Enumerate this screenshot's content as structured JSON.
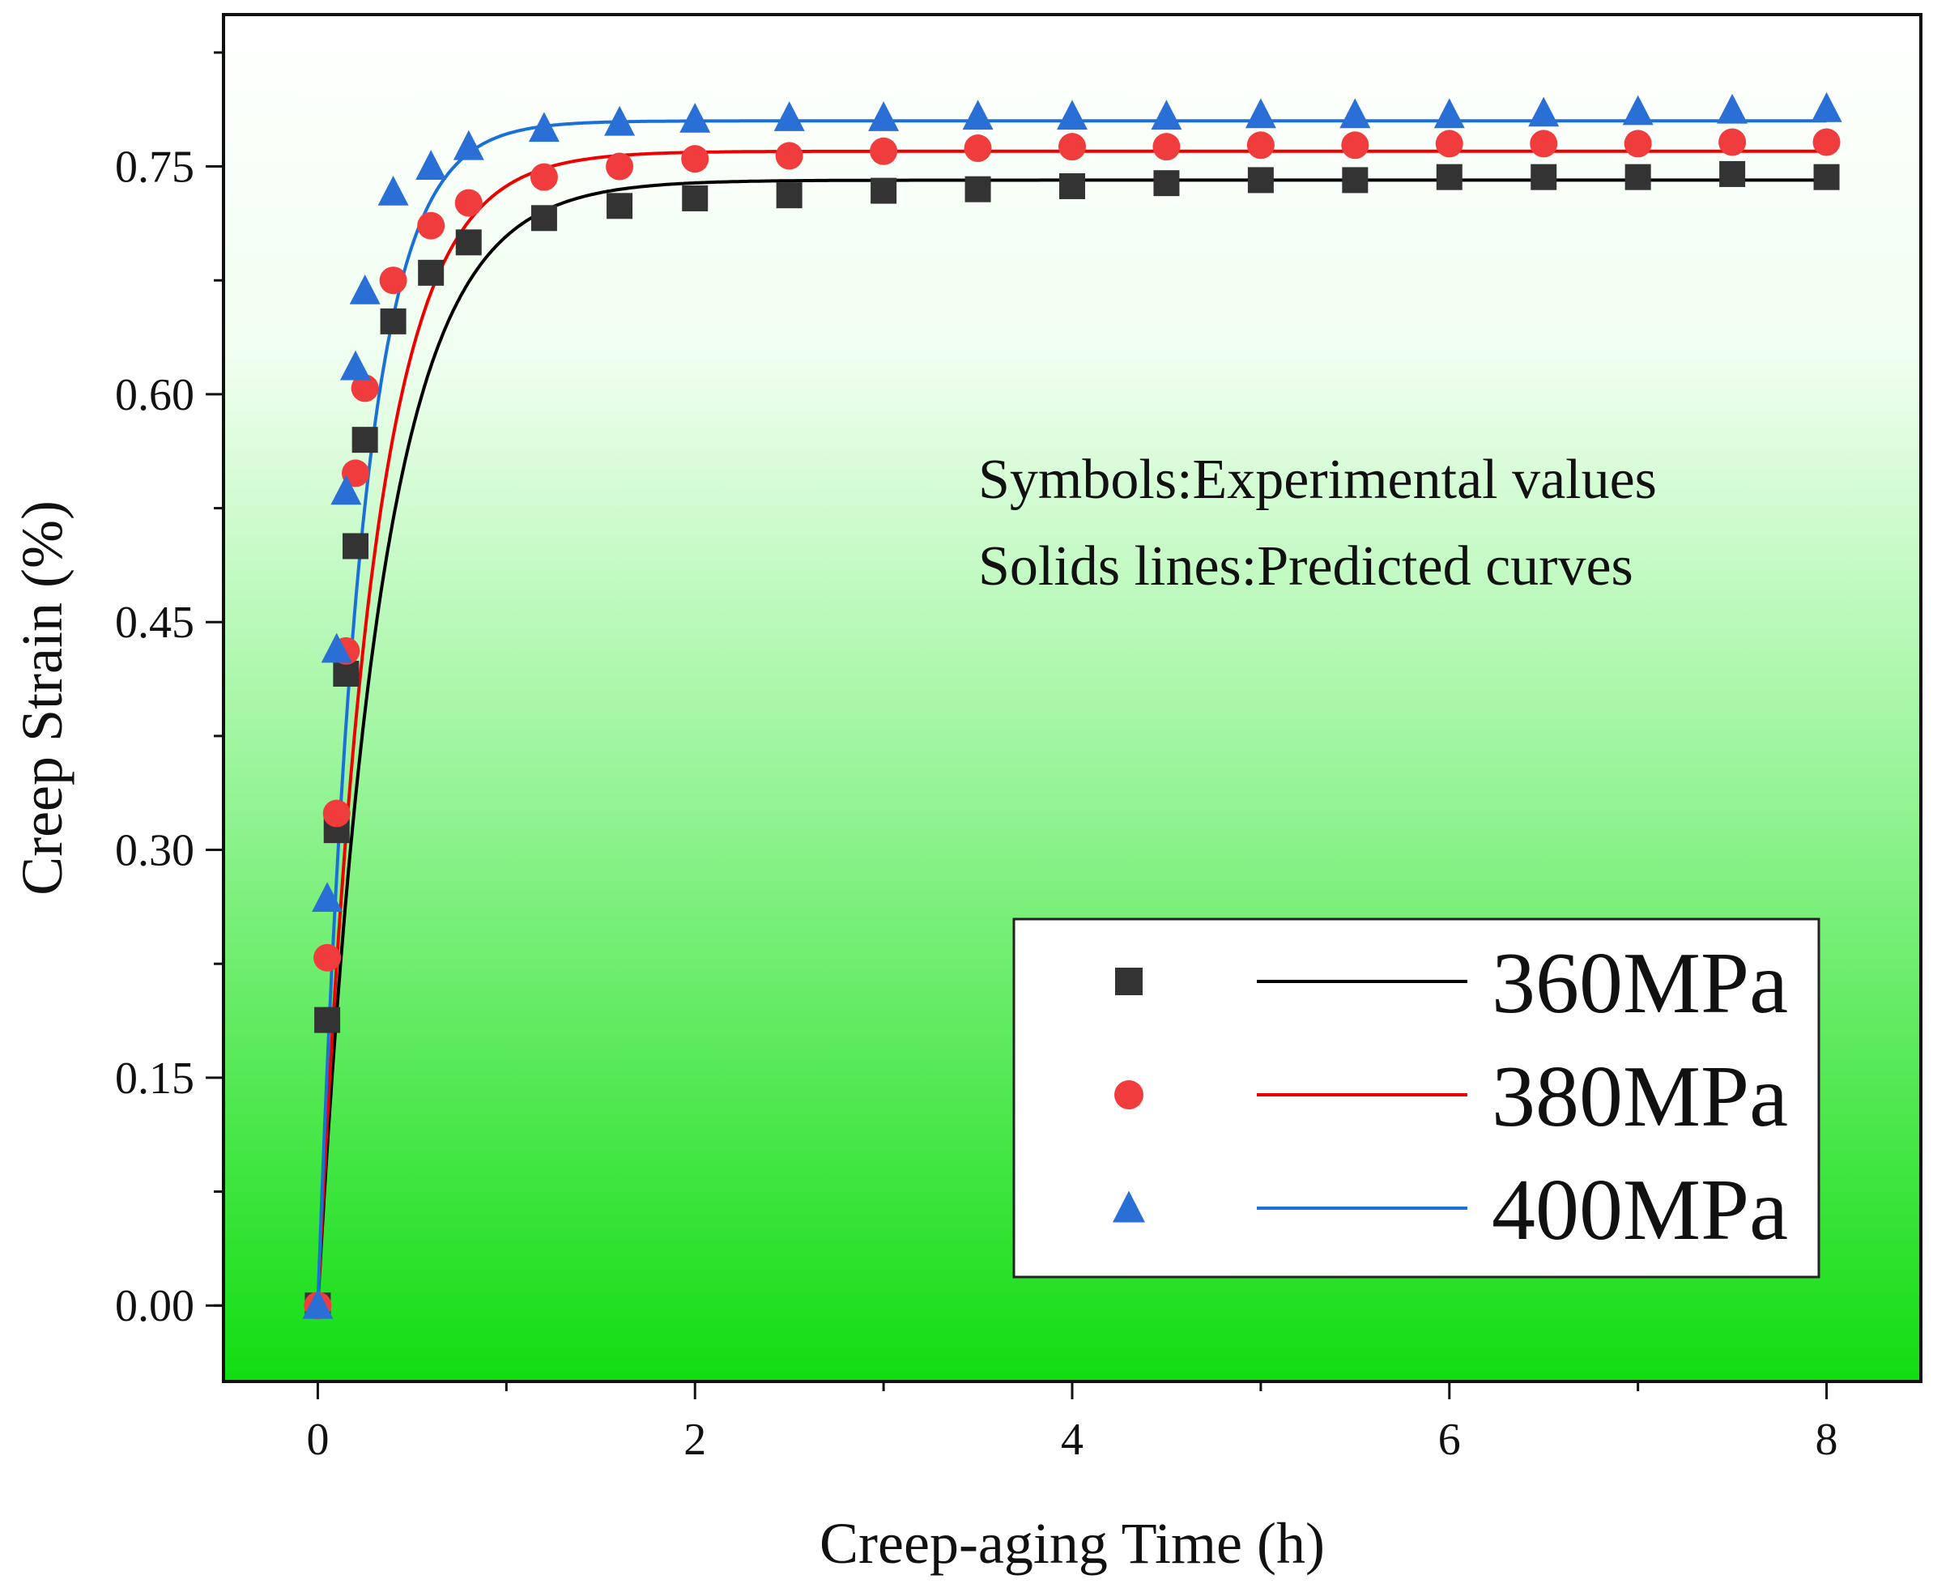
{
  "chart_data": {
    "type": "scatter",
    "title": "",
    "xlabel": "Creep-aging Time (h)",
    "ylabel": "Creep Strain (%)",
    "xlim": [
      -0.5,
      8.5
    ],
    "ylim": [
      -0.05,
      0.85
    ],
    "xticks": [
      0,
      2,
      4,
      6,
      8
    ],
    "yticks": [
      0.0,
      0.15,
      0.3,
      0.45,
      0.6,
      0.75
    ],
    "xtick_labels": [
      "0",
      "2",
      "4",
      "6",
      "8"
    ],
    "ytick_labels": [
      "0.00",
      "0.15",
      "0.30",
      "0.45",
      "0.60",
      "0.75"
    ],
    "background": {
      "top": "#ffffff",
      "bottom": "#11dd11"
    },
    "annotation": [
      "Symbols:Experimental values",
      "Solids lines:Predicted curves"
    ],
    "legend_position": "bottom-right",
    "series": [
      {
        "name": "360MPa",
        "marker": "square",
        "color": "#333333",
        "line_color": "#000000",
        "line_params": {
          "A": 0.741,
          "k": 3.0
        },
        "x": [
          0,
          0.05,
          0.1,
          0.15,
          0.2,
          0.25,
          0.4,
          0.6,
          0.8,
          1.2,
          1.6,
          2.0,
          2.5,
          3.0,
          3.5,
          4.0,
          4.5,
          5.0,
          5.5,
          6.0,
          6.5,
          7.0,
          7.5,
          8.0
        ],
        "y": [
          0.0,
          0.188,
          0.313,
          0.416,
          0.5,
          0.57,
          0.648,
          0.68,
          0.7,
          0.716,
          0.724,
          0.729,
          0.731,
          0.734,
          0.735,
          0.737,
          0.739,
          0.741,
          0.741,
          0.743,
          0.743,
          0.743,
          0.745,
          0.743
        ]
      },
      {
        "name": "380MPa",
        "marker": "circle",
        "color": "#f03c3c",
        "line_color": "#ee0000",
        "line_params": {
          "A": 0.76,
          "k": 3.5
        },
        "x": [
          0,
          0.05,
          0.1,
          0.15,
          0.2,
          0.25,
          0.4,
          0.6,
          0.8,
          1.2,
          1.6,
          2.0,
          2.5,
          3.0,
          3.5,
          4.0,
          4.5,
          5.0,
          5.5,
          6.0,
          6.5,
          7.0,
          7.5,
          8.0
        ],
        "y": [
          0.0,
          0.229,
          0.324,
          0.431,
          0.548,
          0.604,
          0.675,
          0.711,
          0.726,
          0.743,
          0.75,
          0.755,
          0.757,
          0.76,
          0.762,
          0.763,
          0.763,
          0.764,
          0.764,
          0.765,
          0.765,
          0.765,
          0.766,
          0.766
        ]
      },
      {
        "name": "400MPa",
        "marker": "triangle",
        "color": "#2a6fd6",
        "line_color": "#1a6fd8",
        "line_params": {
          "A": 0.78,
          "k": 4.5
        },
        "x": [
          0,
          0.05,
          0.1,
          0.15,
          0.2,
          0.25,
          0.4,
          0.6,
          0.8,
          1.2,
          1.6,
          2.0,
          2.5,
          3.0,
          3.5,
          4.0,
          4.5,
          5.0,
          5.5,
          6.0,
          6.5,
          7.0,
          7.5,
          8.0
        ],
        "y": [
          0.0,
          0.268,
          0.432,
          0.536,
          0.618,
          0.668,
          0.733,
          0.75,
          0.763,
          0.775,
          0.779,
          0.781,
          0.782,
          0.782,
          0.783,
          0.783,
          0.783,
          0.784,
          0.784,
          0.784,
          0.785,
          0.786,
          0.787,
          0.788
        ]
      }
    ]
  }
}
